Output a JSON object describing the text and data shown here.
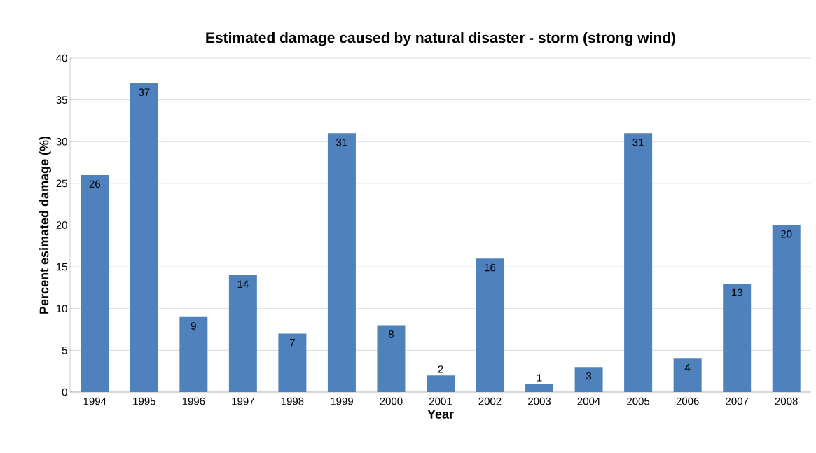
{
  "chart_data": {
    "type": "bar",
    "title": "Estimated damage caused by natural disaster - storm (strong wind)",
    "xlabel": "Year",
    "ylabel": "Percent esimated damage (%)",
    "categories": [
      "1994",
      "1995",
      "1996",
      "1997",
      "1998",
      "1999",
      "2000",
      "2001",
      "2002",
      "2003",
      "2004",
      "2005",
      "2006",
      "2007",
      "2008"
    ],
    "values": [
      26,
      37,
      9,
      14,
      7,
      31,
      8,
      2,
      16,
      1,
      3,
      31,
      4,
      13,
      20
    ],
    "color": "#4f81bd",
    "ylim": [
      0,
      40
    ],
    "yticks": [
      0,
      5,
      10,
      15,
      20,
      25,
      30,
      35,
      40
    ],
    "grid": "y",
    "data_labels": true
  }
}
